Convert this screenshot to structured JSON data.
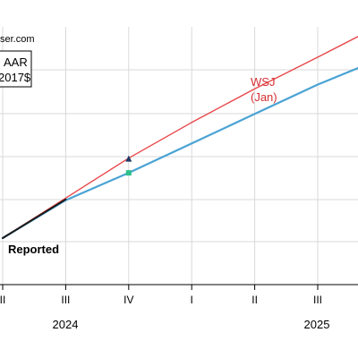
{
  "chart_data": {
    "type": "line",
    "source_fragment": "ser.com",
    "box_labels": [
      "AAR",
      "2017$"
    ],
    "x_tick_labels": [
      "II",
      "III",
      "IV",
      "I",
      "II",
      "III"
    ],
    "year_labels": [
      "2024",
      "2025"
    ],
    "series": [
      {
        "name": "WSJ (Jan)",
        "label_lines": [
          "WSJ",
          "(Jan)"
        ],
        "color": "#e8474a",
        "points": [
          [
            0.0,
            0.0
          ],
          [
            1.0,
            0.95
          ],
          [
            2.0,
            1.9
          ],
          [
            3.0,
            2.75
          ],
          [
            4.0,
            3.55
          ],
          [
            5.0,
            4.3
          ],
          [
            5.65,
            4.8
          ]
        ]
      },
      {
        "name": "Reported",
        "label_lines": [
          "Reported"
        ],
        "color": "#1a1a1a",
        "points": [
          [
            0.0,
            0.0
          ],
          [
            1.0,
            0.92
          ]
        ]
      },
      {
        "name": "",
        "color": "#4aa3d4",
        "points": [
          [
            0.0,
            0.0
          ],
          [
            1.0,
            0.9
          ],
          [
            2.0,
            1.55
          ],
          [
            3.0,
            2.25
          ],
          [
            4.0,
            2.95
          ],
          [
            5.0,
            3.65
          ],
          [
            5.65,
            4.05
          ]
        ]
      }
    ],
    "markers": [
      {
        "shape": "triangle",
        "color": "#1f3a68",
        "x": 2.0,
        "y": 1.88
      },
      {
        "shape": "square",
        "color": "#2dbf8a",
        "x": 2.0,
        "y": 1.55
      }
    ],
    "ylim": [
      -0.4,
      5.5
    ],
    "xlim": [
      0.0,
      5.65
    ],
    "grid": true
  }
}
